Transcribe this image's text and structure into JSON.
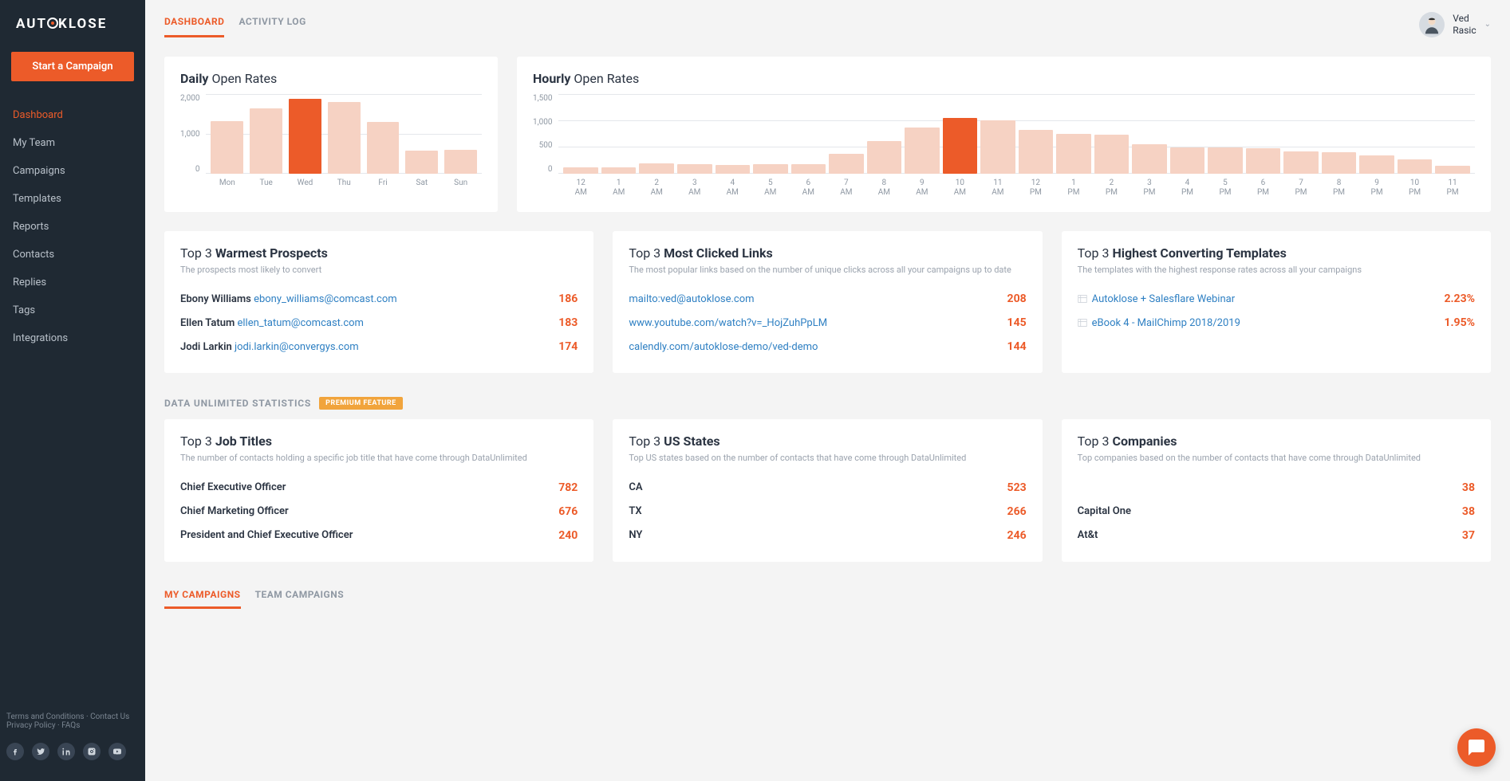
{
  "brand": {
    "name": "AUTOKLOSE"
  },
  "cta_label": "Start a Campaign",
  "nav": [
    {
      "label": "Dashboard",
      "active": true
    },
    {
      "label": "My Team"
    },
    {
      "label": "Campaigns"
    },
    {
      "label": "Templates"
    },
    {
      "label": "Reports"
    },
    {
      "label": "Contacts"
    },
    {
      "label": "Replies"
    },
    {
      "label": "Tags"
    },
    {
      "label": "Integrations"
    }
  ],
  "footer": {
    "row1a": "Terms and Conditions",
    "row1b": "Contact Us",
    "row2a": "Privacy Policy",
    "row2b": "FAQs"
  },
  "top_tabs": [
    {
      "label": "DASHBOARD",
      "active": true
    },
    {
      "label": "ACTIVITY LOG"
    }
  ],
  "user": {
    "first": "Ved",
    "last": "Rasic"
  },
  "daily_chart": {
    "title_bold": "Daily",
    "title_rest": "Open Rates",
    "type": "bar",
    "yticks": [
      "2,000",
      "1,000",
      "0"
    ],
    "ylim": 2000,
    "categories": [
      "Mon",
      "Tue",
      "Wed",
      "Thu",
      "Fri",
      "Sat",
      "Sun"
    ],
    "values": [
      1320,
      1640,
      1890,
      1800,
      1300,
      580,
      600
    ],
    "color_light": "#f6d2c3",
    "color_hi": "#ec5b29",
    "highlight_index": 2,
    "grid_color": "#e4e7eb",
    "bar_gap": 8
  },
  "hourly_chart": {
    "title_bold": "Hourly",
    "title_rest": "Open Rates",
    "type": "bar",
    "yticks": [
      "1,500",
      "1,000",
      "500",
      "0"
    ],
    "ylim": 1500,
    "categories": [
      "12 AM",
      "1 AM",
      "2 AM",
      "3 AM",
      "4 AM",
      "5 AM",
      "6 AM",
      "7 AM",
      "8 AM",
      "9 AM",
      "10 AM",
      "11 AM",
      "12 PM",
      "1 PM",
      "2 PM",
      "3 PM",
      "4 PM",
      "5 PM",
      "6 PM",
      "7 PM",
      "8 PM",
      "9 PM",
      "10 PM",
      "11 PM"
    ],
    "values": [
      120,
      120,
      190,
      180,
      170,
      180,
      180,
      380,
      620,
      870,
      1050,
      1000,
      820,
      750,
      740,
      550,
      500,
      500,
      480,
      420,
      400,
      350,
      270,
      150
    ],
    "color_light": "#f6d2c3",
    "color_hi": "#ec5b29",
    "highlight_index": 10,
    "grid_color": "#e4e7eb",
    "bar_gap": 4
  },
  "prospects": {
    "title_pre": "Top 3",
    "title_bold": "Warmest Prospects",
    "sub": "The prospects most likely to convert",
    "rows": [
      {
        "name": "Ebony Williams",
        "email": "ebony_williams@comcast.com",
        "val": "186"
      },
      {
        "name": "Ellen Tatum",
        "email": "ellen_tatum@comcast.com",
        "val": "183"
      },
      {
        "name": "Jodi Larkin",
        "email": "jodi.larkin@convergys.com",
        "val": "174"
      }
    ]
  },
  "links": {
    "title_pre": "Top 3",
    "title_bold": "Most Clicked Links",
    "sub": "The most popular links based on the number of unique clicks across all your campaigns up to date",
    "rows": [
      {
        "url": "mailto:ved@autoklose.com",
        "val": "208"
      },
      {
        "url": "www.youtube.com/watch?v=_HojZuhPpLM",
        "val": "145"
      },
      {
        "url": "calendly.com/autoklose-demo/ved-demo",
        "val": "144"
      }
    ]
  },
  "templates": {
    "title_pre": "Top 3",
    "title_bold": "Highest Converting Templates",
    "sub": "The templates with the highest response rates across all your campaigns",
    "rows": [
      {
        "title": "Autoklose + Salesflare Webinar",
        "val": "2.23%"
      },
      {
        "title": "eBook 4 - MailChimp 2018/2019",
        "val": "1.95%"
      }
    ]
  },
  "section": {
    "label": "DATA UNLIMITED STATISTICS",
    "badge": "PREMIUM FEATURE"
  },
  "jobtitles": {
    "title_pre": "Top 3",
    "title_bold": "Job Titles",
    "sub": "The number of contacts holding a specific job title that have come through DataUnlimited",
    "rows": [
      {
        "label": "Chief Executive Officer",
        "val": "782"
      },
      {
        "label": "Chief Marketing Officer",
        "val": "676"
      },
      {
        "label": "President and Chief Executive Officer",
        "val": "240"
      }
    ]
  },
  "states": {
    "title_pre": "Top 3",
    "title_bold": "US States",
    "sub": "Top US states based on the number of contacts that have come through DataUnlimited",
    "rows": [
      {
        "label": "CA",
        "val": "523"
      },
      {
        "label": "TX",
        "val": "266"
      },
      {
        "label": "NY",
        "val": "246"
      }
    ]
  },
  "companies": {
    "title_pre": "Top 3",
    "title_bold": "Companies",
    "sub": "Top companies based on the number of contacts that have come through DataUnlimited",
    "rows": [
      {
        "label": "",
        "val": "38"
      },
      {
        "label": "Capital One",
        "val": "38"
      },
      {
        "label": "At&t",
        "val": "37"
      }
    ]
  },
  "bottom_tabs": [
    {
      "label": "MY CAMPAIGNS",
      "active": true
    },
    {
      "label": "TEAM CAMPAIGNS"
    }
  ],
  "colors": {
    "accent": "#ec5b29",
    "link": "#2f80c3",
    "text": "#2b3442",
    "muted": "#8f98a3"
  }
}
